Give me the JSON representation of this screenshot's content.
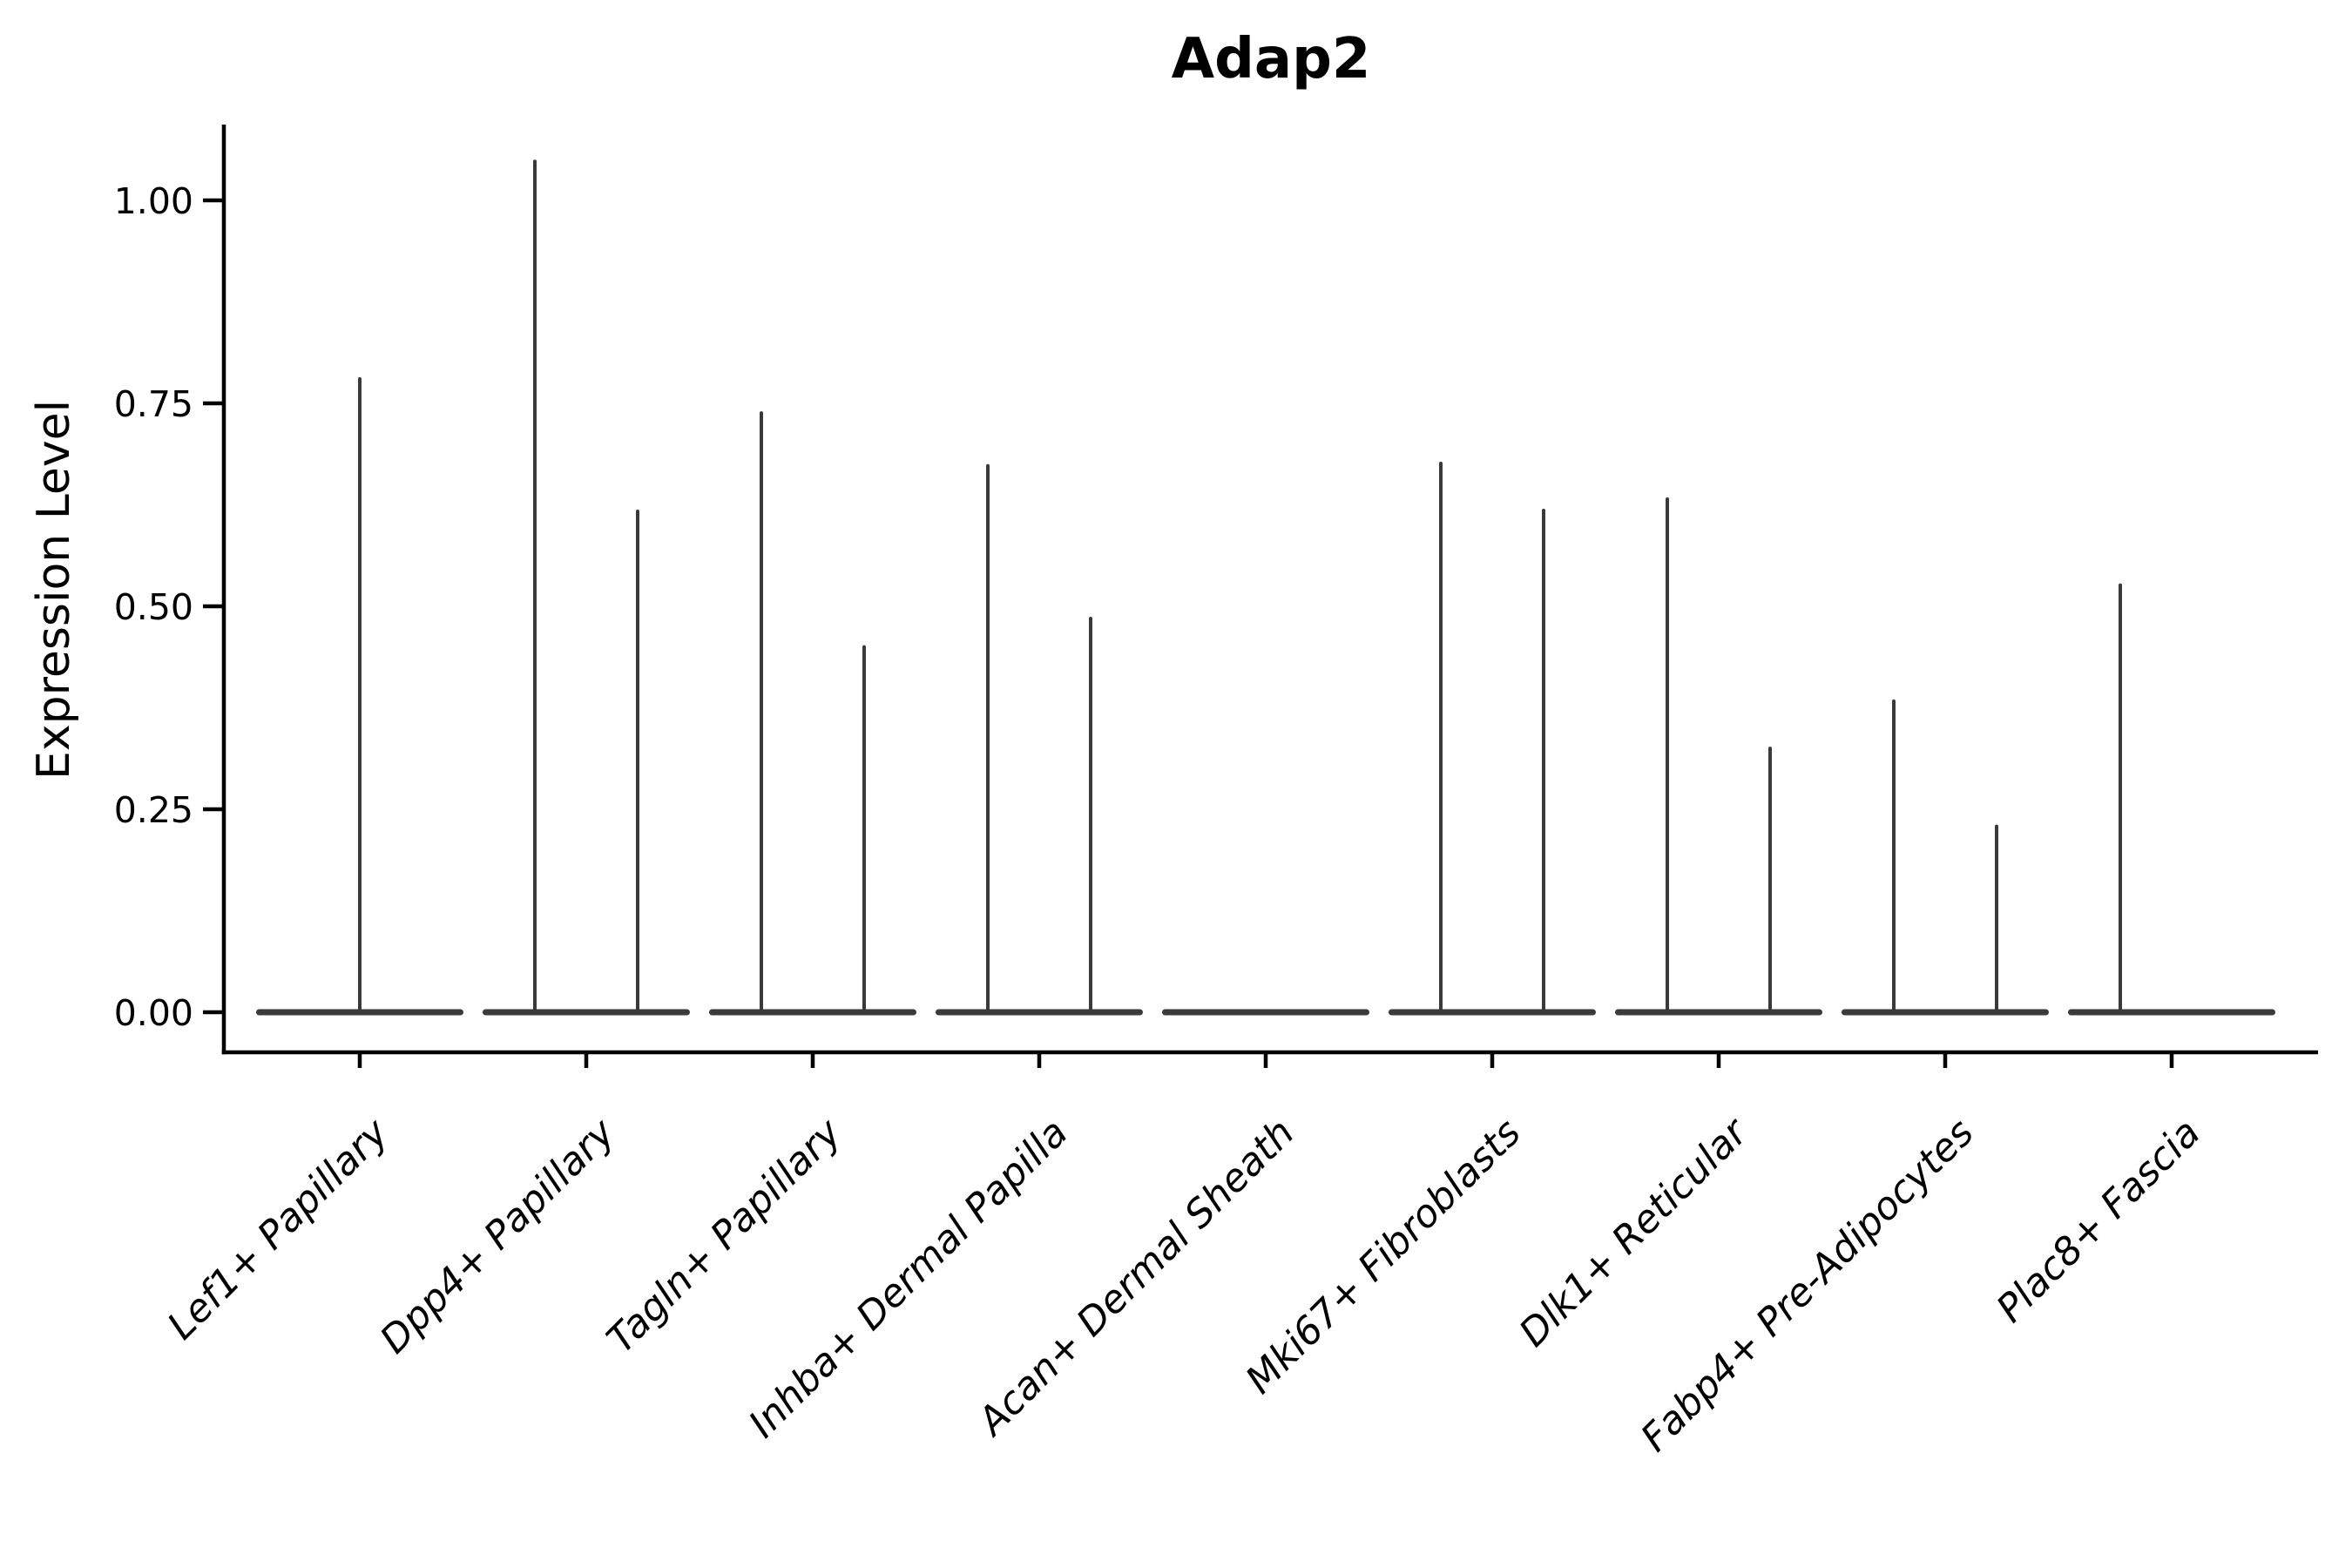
{
  "title": "Adap2",
  "y_axis": {
    "label": "Expression Level",
    "tick_labels": [
      "0.00",
      "0.25",
      "0.50",
      "0.75",
      "1.00"
    ]
  },
  "chart_data": {
    "type": "violin",
    "title": "Adap2",
    "ylabel": "Expression Level",
    "xlabel": "",
    "ylim": [
      -0.05,
      1.09
    ],
    "yticks": [
      0.0,
      0.25,
      0.5,
      0.75,
      1.0
    ],
    "grid": false,
    "legend": "none",
    "description": "Violin plot of Adap2 expression per cell-type cluster; each violin is a flat bar at 0 (most cells zero) with thin vertical density spikes reaching the maximum expression values.",
    "categories": [
      "Lef1+ Papillary",
      "Dpp4+ Papillary",
      "Tagln+ Papillary",
      "Inhba+ Dermal Papilla",
      "Acan+ Dermal Sheath",
      "Mki67+ Fibroblasts",
      "Dlk1+ Reticular",
      "Fabp4+ Pre-Adipocytes",
      "Plac8+ Fascia"
    ],
    "violins": [
      {
        "category": "Lef1+ Papillary",
        "spikes": [
          {
            "position": "center",
            "peak": 0.78
          }
        ]
      },
      {
        "category": "Dpp4+ Papillary",
        "spikes": [
          {
            "position": "left",
            "peak": 1.048
          },
          {
            "position": "right",
            "peak": 0.617
          }
        ]
      },
      {
        "category": "Tagln+ Papillary",
        "spikes": [
          {
            "position": "left",
            "peak": 0.738
          },
          {
            "position": "right",
            "peak": 0.45
          }
        ]
      },
      {
        "category": "Inhba+ Dermal Papilla",
        "spikes": [
          {
            "position": "left",
            "peak": 0.673
          },
          {
            "position": "right",
            "peak": 0.485
          }
        ]
      },
      {
        "category": "Acan+ Dermal Sheath",
        "spikes": []
      },
      {
        "category": "Mki67+ Fibroblasts",
        "spikes": [
          {
            "position": "left",
            "peak": 0.676
          },
          {
            "position": "right",
            "peak": 0.618
          }
        ]
      },
      {
        "category": "Dlk1+ Reticular",
        "spikes": [
          {
            "position": "left",
            "peak": 0.632
          },
          {
            "position": "right",
            "peak": 0.325
          }
        ]
      },
      {
        "category": "Fabp4+ Pre-Adipocytes",
        "spikes": [
          {
            "position": "left",
            "peak": 0.383
          },
          {
            "position": "right",
            "peak": 0.229
          }
        ]
      },
      {
        "category": "Plac8+ Fascia",
        "spikes": [
          {
            "position": "left",
            "peak": 0.526
          }
        ]
      }
    ],
    "colors": {
      "violin_stroke": "#3A3A3A",
      "axis": "#000000",
      "text": "#000000",
      "background": "#FFFFFF"
    }
  }
}
